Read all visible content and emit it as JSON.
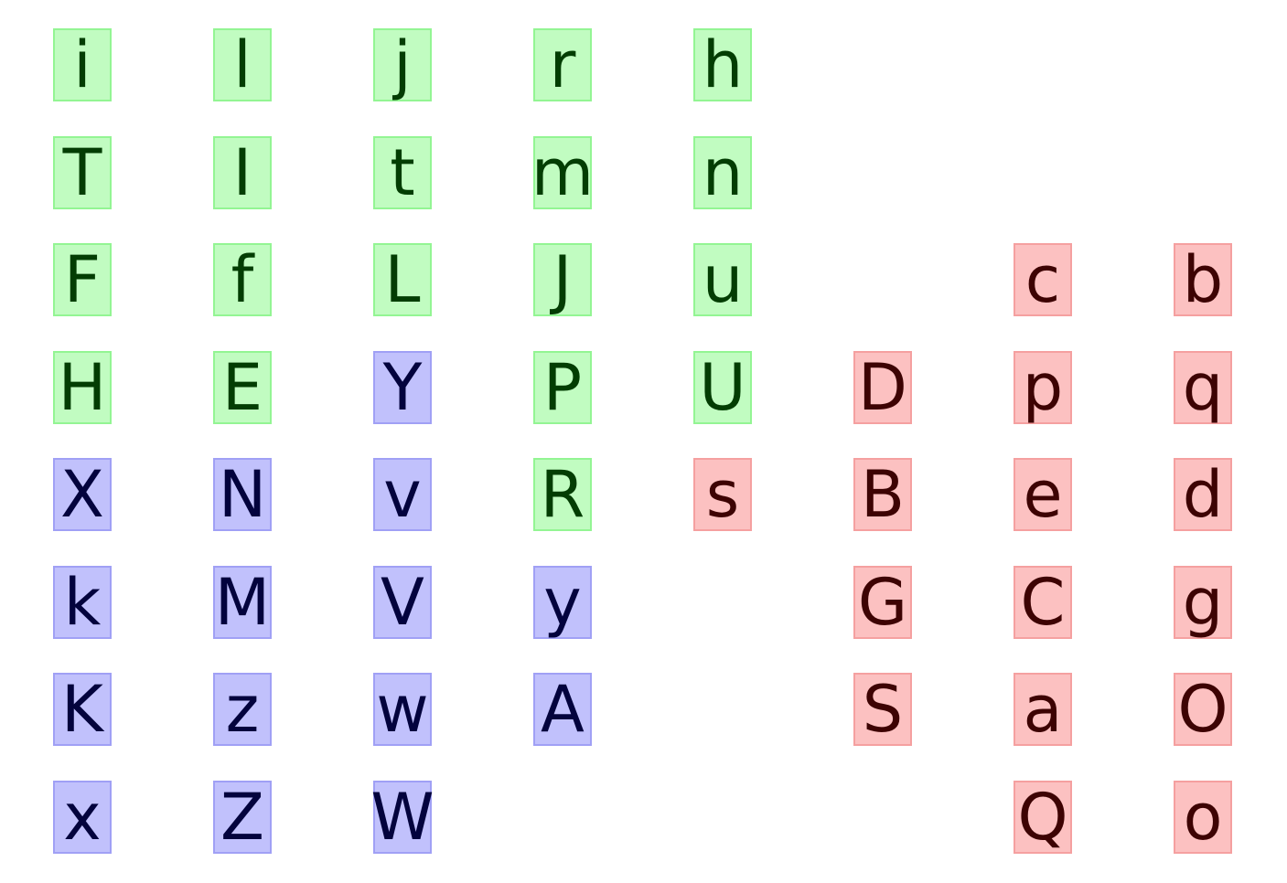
{
  "groups": {
    "green": {
      "fill": "#c1fcc1",
      "border": "#93f593",
      "text": "#033d03"
    },
    "blue": {
      "fill": "#c1c1fc",
      "border": "#a0a0f5",
      "text": "#03033d"
    },
    "red": {
      "fill": "#fcc1c1",
      "border": "#f5a0a0",
      "text": "#3d0303"
    }
  },
  "columns": [
    [
      {
        "char": "i",
        "group": "green"
      },
      {
        "char": "T",
        "group": "green"
      },
      {
        "char": "F",
        "group": "green"
      },
      {
        "char": "H",
        "group": "green"
      },
      {
        "char": "X",
        "group": "blue"
      },
      {
        "char": "k",
        "group": "blue"
      },
      {
        "char": "K",
        "group": "blue"
      },
      {
        "char": "x",
        "group": "blue"
      }
    ],
    [
      {
        "char": "l",
        "group": "green"
      },
      {
        "char": "I",
        "group": "green"
      },
      {
        "char": "f",
        "group": "green"
      },
      {
        "char": "E",
        "group": "green"
      },
      {
        "char": "N",
        "group": "blue"
      },
      {
        "char": "M",
        "group": "blue"
      },
      {
        "char": "z",
        "group": "blue"
      },
      {
        "char": "Z",
        "group": "blue"
      }
    ],
    [
      {
        "char": "j",
        "group": "green"
      },
      {
        "char": "t",
        "group": "green"
      },
      {
        "char": "L",
        "group": "green"
      },
      {
        "char": "Y",
        "group": "blue"
      },
      {
        "char": "v",
        "group": "blue"
      },
      {
        "char": "V",
        "group": "blue"
      },
      {
        "char": "w",
        "group": "blue"
      },
      {
        "char": "W",
        "group": "blue"
      }
    ],
    [
      {
        "char": "r",
        "group": "green"
      },
      {
        "char": "m",
        "group": "green"
      },
      {
        "char": "J",
        "group": "green"
      },
      {
        "char": "P",
        "group": "green"
      },
      {
        "char": "R",
        "group": "green"
      },
      {
        "char": "y",
        "group": "blue"
      },
      {
        "char": "A",
        "group": "blue"
      },
      null
    ],
    [
      {
        "char": "h",
        "group": "green"
      },
      {
        "char": "n",
        "group": "green"
      },
      {
        "char": "u",
        "group": "green"
      },
      {
        "char": "U",
        "group": "green"
      },
      {
        "char": "s",
        "group": "red"
      },
      null,
      null,
      null
    ],
    [
      null,
      null,
      null,
      {
        "char": "D",
        "group": "red"
      },
      {
        "char": "B",
        "group": "red"
      },
      {
        "char": "G",
        "group": "red"
      },
      {
        "char": "S",
        "group": "red"
      },
      null
    ],
    [
      null,
      null,
      {
        "char": "c",
        "group": "red"
      },
      {
        "char": "p",
        "group": "red"
      },
      {
        "char": "e",
        "group": "red"
      },
      {
        "char": "C",
        "group": "red"
      },
      {
        "char": "a",
        "group": "red"
      },
      {
        "char": "Q",
        "group": "red"
      }
    ],
    [
      null,
      null,
      {
        "char": "b",
        "group": "red"
      },
      {
        "char": "q",
        "group": "red"
      },
      {
        "char": "d",
        "group": "red"
      },
      {
        "char": "g",
        "group": "red"
      },
      {
        "char": "O",
        "group": "red"
      },
      {
        "char": "o",
        "group": "red"
      }
    ]
  ]
}
